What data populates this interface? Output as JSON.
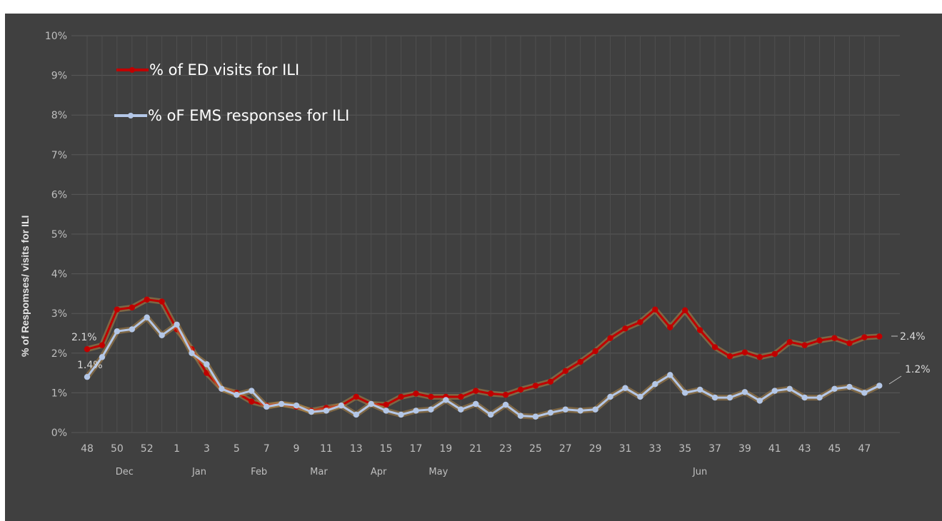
{
  "chart_data": {
    "type": "line",
    "title": "",
    "xlabel": "",
    "ylabel": "% of Respomses/ visits for ILI",
    "ylim": [
      0,
      10
    ],
    "y_ticks": [
      "0%",
      "1%",
      "2%",
      "3%",
      "4%",
      "5%",
      "6%",
      "7%",
      "8%",
      "9%",
      "10%"
    ],
    "x": [
      "48",
      "49",
      "50",
      "51",
      "52",
      "53",
      "1",
      "2",
      "3",
      "4",
      "5",
      "6",
      "7",
      "8",
      "9",
      "10",
      "11",
      "12",
      "13",
      "14",
      "15",
      "16",
      "17",
      "18",
      "19",
      "20",
      "21",
      "22",
      "23",
      "24",
      "25",
      "26",
      "27",
      "28",
      "29",
      "30",
      "31",
      "32",
      "33",
      "34",
      "35",
      "36",
      "37",
      "38",
      "39",
      "40",
      "41",
      "42",
      "43",
      "44",
      "45",
      "46",
      "47",
      "48"
    ],
    "x_tick_labels": [
      "48",
      "50",
      "52",
      "1",
      "3",
      "5",
      "7",
      "9",
      "11",
      "13",
      "15",
      "17",
      "19",
      "21",
      "23",
      "25",
      "27",
      "29",
      "31",
      "33",
      "35",
      "37",
      "39",
      "41",
      "43",
      "45",
      "47"
    ],
    "month_labels": [
      "Dec",
      "Jan",
      "Feb",
      "Mar",
      "Apr",
      "May",
      "Jun"
    ],
    "grid": true,
    "legend": "top-left",
    "series": [
      {
        "name": "% of ED visits for ILI",
        "color": "#c00000",
        "values": [
          2.1,
          2.2,
          3.1,
          3.15,
          3.35,
          3.3,
          2.6,
          2.1,
          1.5,
          1.1,
          1.0,
          0.78,
          0.68,
          0.72,
          0.65,
          0.55,
          0.62,
          0.68,
          0.9,
          0.72,
          0.7,
          0.9,
          0.98,
          0.9,
          0.9,
          0.9,
          1.05,
          0.98,
          0.95,
          1.08,
          1.18,
          1.28,
          1.55,
          1.78,
          2.05,
          2.38,
          2.62,
          2.78,
          3.1,
          2.65,
          3.08,
          2.58,
          2.15,
          1.92,
          2.02,
          1.9,
          1.98,
          2.28,
          2.2,
          2.32,
          2.38,
          2.25,
          2.4,
          2.42
        ]
      },
      {
        "name": "% oF EMS responses for ILI",
        "color": "#b4c7e7",
        "values": [
          1.4,
          1.9,
          2.55,
          2.6,
          2.9,
          2.45,
          2.72,
          2.0,
          1.72,
          1.1,
          0.95,
          1.05,
          0.65,
          0.72,
          0.68,
          0.52,
          0.55,
          0.68,
          0.45,
          0.72,
          0.55,
          0.45,
          0.55,
          0.58,
          0.82,
          0.58,
          0.72,
          0.45,
          0.7,
          0.42,
          0.4,
          0.5,
          0.58,
          0.55,
          0.58,
          0.9,
          1.12,
          0.9,
          1.22,
          1.45,
          1.0,
          1.08,
          0.88,
          0.88,
          1.02,
          0.8,
          1.05,
          1.1,
          0.88,
          0.88,
          1.1,
          1.15,
          1.0,
          1.18
        ]
      }
    ],
    "data_labels": [
      "2.1%",
      "1.4%",
      "2.4%",
      "1.2%"
    ]
  }
}
